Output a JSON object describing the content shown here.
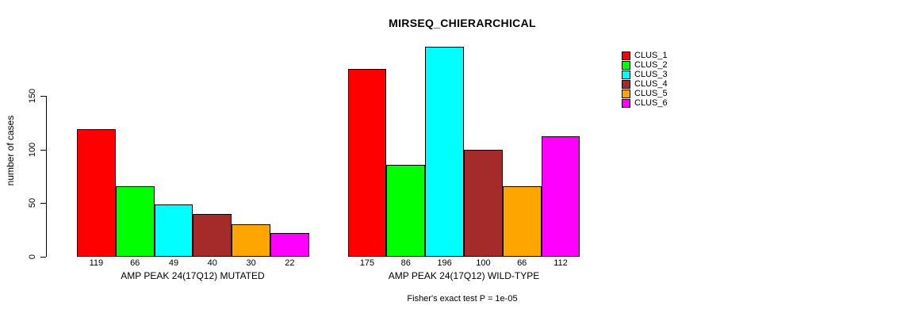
{
  "chart_data": {
    "type": "bar",
    "title": "MIRSEQ_CHIERARCHICAL",
    "ylabel": "number of cases",
    "xlabel": "",
    "yticks": [
      0,
      50,
      100,
      150
    ],
    "ylim": [
      0,
      196
    ],
    "grid": false,
    "value_labels": true,
    "categories": [
      "AMP PEAK 24(17Q12) MUTATED",
      "AMP PEAK 24(17Q12) WILD-TYPE"
    ],
    "series": [
      {
        "name": "CLUS_1",
        "color": "#FF0000",
        "values": [
          119,
          175
        ]
      },
      {
        "name": "CLUS_2",
        "color": "#00FF00",
        "values": [
          66,
          86
        ]
      },
      {
        "name": "CLUS_3",
        "color": "#00FFFF",
        "values": [
          49,
          196
        ]
      },
      {
        "name": "CLUS_4",
        "color": "#A52A2A",
        "values": [
          40,
          100
        ]
      },
      {
        "name": "CLUS_5",
        "color": "#FFA500",
        "values": [
          30,
          66
        ]
      },
      {
        "name": "CLUS_6",
        "color": "#FF00FF",
        "values": [
          22,
          112
        ]
      }
    ],
    "legend": {
      "position": "top-right",
      "entries": [
        {
          "label": "CLUS_1",
          "color": "#FF0000"
        },
        {
          "label": "CLUS_2",
          "color": "#00FF00"
        },
        {
          "label": "CLUS_3",
          "color": "#00FFFF"
        },
        {
          "label": "CLUS_4",
          "color": "#A52A2A"
        },
        {
          "label": "CLUS_5",
          "color": "#FFA500"
        },
        {
          "label": "CLUS_6",
          "color": "#FF00FF"
        }
      ]
    },
    "annotation": "Fisher's exact test P = 1e-05"
  }
}
